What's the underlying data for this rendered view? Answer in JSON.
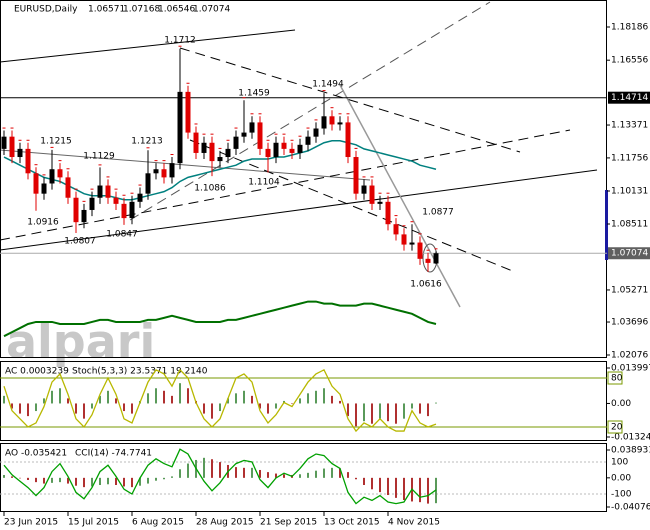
{
  "chart_data": {
    "type": "candlestick",
    "title": "EURUSD,Daily",
    "header_values": [
      1.06571,
      1.07168,
      1.06546,
      1.07074
    ],
    "categories": [
      "23 Jun 2015",
      null,
      null,
      null,
      null,
      null,
      null,
      null,
      "15 Jul 2015",
      null,
      null,
      null,
      null,
      null,
      null,
      null,
      "6 Aug 2015",
      null,
      null,
      null,
      null,
      null,
      null,
      null,
      "28 Aug 2015",
      null,
      null,
      null,
      null,
      null,
      null,
      null,
      "21 Sep 2015",
      null,
      null,
      null,
      null,
      null,
      null,
      null,
      "13 Oct 2015",
      null,
      null,
      null,
      null,
      null,
      null,
      null,
      "4 Nov 2015",
      null,
      null,
      null,
      null,
      null,
      null
    ],
    "open": [
      1.122,
      1.128,
      1.118,
      1.122,
      1.11,
      1.1,
      1.105,
      1.112,
      1.108,
      1.098,
      1.086,
      1.092,
      1.098,
      1.104,
      1.098,
      1.095,
      1.088,
      1.096,
      1.1,
      1.11,
      1.112,
      1.108,
      1.115,
      1.15,
      1.13,
      1.12,
      1.125,
      1.116,
      1.118,
      1.122,
      1.128,
      1.13,
      1.135,
      1.122,
      1.118,
      1.125,
      1.122,
      1.12,
      1.124,
      1.128,
      1.132,
      1.138,
      1.134,
      1.135,
      1.118,
      1.1,
      1.104,
      1.095,
      1.096,
      1.085,
      1.08,
      1.075,
      1.076,
      1.068,
      1.06571
    ],
    "high": [
      1.131,
      1.131,
      1.125,
      1.125,
      1.113,
      1.108,
      1.1215,
      1.115,
      1.111,
      1.101,
      1.095,
      1.101,
      1.1129,
      1.107,
      1.101,
      1.098,
      1.099,
      1.103,
      1.1213,
      1.115,
      1.115,
      1.118,
      1.1712,
      1.153,
      1.133,
      1.128,
      1.128,
      1.121,
      1.125,
      1.131,
      1.1459,
      1.138,
      1.138,
      1.125,
      1.128,
      1.128,
      1.125,
      1.127,
      1.131,
      1.135,
      1.1494,
      1.141,
      1.138,
      1.138,
      1.121,
      1.107,
      1.107,
      1.099,
      1.099,
      1.088,
      1.083,
      1.085,
      1.079,
      1.071,
      1.07168
    ],
    "low": [
      1.119,
      1.115,
      1.115,
      1.107,
      1.0916,
      1.097,
      1.102,
      1.105,
      1.095,
      1.0807,
      1.083,
      1.089,
      1.095,
      1.095,
      1.092,
      1.0847,
      1.085,
      1.093,
      1.097,
      1.107,
      1.105,
      1.105,
      1.112,
      1.127,
      1.117,
      1.117,
      1.1086,
      1.113,
      1.115,
      1.119,
      1.125,
      1.127,
      1.119,
      1.1104,
      1.115,
      1.119,
      1.117,
      1.117,
      1.121,
      1.125,
      1.129,
      1.131,
      1.131,
      1.115,
      1.097,
      1.097,
      1.092,
      1.092,
      1.082,
      1.077,
      1.072,
      1.072,
      1.065,
      1.0616,
      1.06546
    ],
    "close": [
      1.128,
      1.118,
      1.122,
      1.11,
      1.1,
      1.105,
      1.112,
      1.108,
      1.098,
      1.086,
      1.092,
      1.098,
      1.104,
      1.098,
      1.095,
      1.088,
      1.096,
      1.1,
      1.11,
      1.112,
      1.108,
      1.115,
      1.15,
      1.13,
      1.12,
      1.125,
      1.116,
      1.118,
      1.122,
      1.128,
      1.13,
      1.135,
      1.122,
      1.118,
      1.125,
      1.122,
      1.12,
      1.124,
      1.128,
      1.132,
      1.138,
      1.134,
      1.135,
      1.118,
      1.1,
      1.104,
      1.095,
      1.096,
      1.085,
      1.08,
      1.075,
      1.076,
      1.068,
      1.066,
      1.07074
    ],
    "up_color": "#000000",
    "down_color": "#e00000",
    "ylim": [
      1.01929,
      1.19512
    ],
    "yticks": [
      1.18186,
      1.16556,
      1.13371,
      1.11756,
      1.10131,
      1.08511,
      1.05271,
      1.03696,
      1.02076
    ],
    "lines": [
      {
        "color": "#00807f",
        "values": [
          1.118,
          1.116,
          1.114,
          1.112,
          1.11,
          1.108,
          1.107,
          1.106,
          1.104,
          1.102,
          1.1,
          1.099,
          1.099,
          1.099,
          1.098,
          1.097,
          1.097,
          1.098,
          1.099,
          1.1,
          1.101,
          1.103,
          1.106,
          1.108,
          1.109,
          1.11,
          1.111,
          1.112,
          1.113,
          1.114,
          1.116,
          1.117,
          1.117,
          1.117,
          1.118,
          1.118,
          1.119,
          1.12,
          1.121,
          1.123,
          1.125,
          1.126,
          1.126,
          1.125,
          1.124,
          1.122,
          1.121,
          1.12,
          1.119,
          1.118,
          1.117,
          1.116,
          1.114,
          1.113,
          1.112
        ]
      },
      {
        "color": "#007000",
        "values": [
          1.03,
          1.032,
          1.034,
          1.036,
          1.037,
          1.037,
          1.037,
          1.036,
          1.036,
          1.036,
          1.036,
          1.037,
          1.038,
          1.038,
          1.037,
          1.037,
          1.037,
          1.037,
          1.038,
          1.038,
          1.039,
          1.04,
          1.039,
          1.038,
          1.037,
          1.037,
          1.037,
          1.037,
          1.038,
          1.038,
          1.039,
          1.04,
          1.041,
          1.042,
          1.043,
          1.044,
          1.045,
          1.046,
          1.047,
          1.047,
          1.046,
          1.046,
          1.045,
          1.045,
          1.045,
          1.046,
          1.046,
          1.045,
          1.044,
          1.043,
          1.042,
          1.041,
          1.039,
          1.037,
          1.036
        ]
      }
    ],
    "price_line": 1.14714,
    "last_price": 1.07074,
    "annotations": [
      "1.1712",
      "1.1494",
      "1.1459",
      "1.1215",
      "1.1213",
      "1.1129",
      "1.1086",
      "1.1104",
      "1.0916",
      "1.0847",
      "1.0807",
      "1.0877",
      "1.0616"
    ],
    "watermark": "alpari",
    "indicators": [
      {
        "title": "AC 0.0003239",
        "title2": "Stoch(5,3,3) 23.5371 19.2140",
        "ylim": [
          -0.014823,
          0.016366
        ],
        "yticks": [
          0.013997,
          {
            "value": 0,
            "label": "0.00"
          },
          -0.013244
        ],
        "bars": [
          0.003,
          -0.002,
          -0.004,
          -0.005,
          -0.003,
          0.002,
          0.005,
          0.006,
          0.002,
          -0.004,
          -0.006,
          -0.002,
          0.003,
          0.005,
          0.002,
          -0.003,
          -0.004,
          0.001,
          0.004,
          0.006,
          0.005,
          0.003,
          0.008,
          0.006,
          0.001,
          -0.004,
          -0.006,
          -0.003,
          0.002,
          0.004,
          0.005,
          0.003,
          -0.002,
          -0.004,
          -0.002,
          0.001,
          0,
          0.002,
          0.004,
          0.005,
          0.006,
          0.003,
          0.001,
          -0.005,
          -0.009,
          -0.007,
          -0.008,
          -0.006,
          -0.007,
          -0.008,
          -0.006,
          -0.002,
          -0.004,
          -0.005,
          0.0003239
        ],
        "y2lim": [
          2.86,
          99.6
        ],
        "y2ticks": [
          80,
          20
        ],
        "line": {
          "color": "#b8b800",
          "values": [
            70,
            40,
            30,
            20,
            25,
            45,
            75,
            85,
            60,
            30,
            20,
            35,
            60,
            80,
            60,
            30,
            25,
            50,
            75,
            90,
            85,
            70,
            90,
            80,
            50,
            30,
            20,
            30,
            55,
            80,
            85,
            75,
            40,
            25,
            35,
            50,
            45,
            60,
            75,
            85,
            90,
            70,
            60,
            30,
            15,
            25,
            20,
            30,
            20,
            15,
            15,
            40,
            25,
            20,
            23.5371
          ]
        }
      },
      {
        "title": "AO -0.035421",
        "title2": "CCI(14) -74.7741",
        "ylim": [
          -0.04776,
          0.04732
        ],
        "yticks": [
          0.038931,
          {
            "value": 0,
            "label": "0.00"
          },
          -0.040765
        ],
        "bars": [
          0.004,
          0.002,
          0,
          -0.003,
          -0.006,
          -0.008,
          -0.007,
          -0.006,
          -0.008,
          -0.011,
          -0.013,
          -0.012,
          -0.01,
          -0.009,
          -0.01,
          -0.012,
          -0.013,
          -0.011,
          -0.008,
          -0.004,
          -0.002,
          0.002,
          0.012,
          0.02,
          0.025,
          0.028,
          0.026,
          0.022,
          0.018,
          0.015,
          0.014,
          0.014,
          0.011,
          0.008,
          0.006,
          0.005,
          0.004,
          0.005,
          0.007,
          0.01,
          0.013,
          0.014,
          0.013,
          0.008,
          -0.002,
          -0.01,
          -0.016,
          -0.02,
          -0.024,
          -0.028,
          -0.031,
          -0.033,
          -0.034,
          -0.036,
          -0.035421
        ],
        "y2lim": [
          -212.5,
          212.5
        ],
        "y2ticks": [
          100,
          -100
        ],
        "line": {
          "color": "#00a000",
          "values": [
            80,
            20,
            -20,
            -60,
            -110,
            -60,
            40,
            90,
            10,
            -90,
            -130,
            -60,
            40,
            80,
            10,
            -70,
            -100,
            0,
            80,
            120,
            90,
            70,
            180,
            150,
            60,
            -20,
            -80,
            -30,
            40,
            90,
            110,
            100,
            -10,
            -60,
            0,
            30,
            10,
            60,
            120,
            150,
            140,
            90,
            60,
            -90,
            -160,
            -120,
            -140,
            -110,
            -150,
            -160,
            -150,
            -70,
            -120,
            -110,
            -74.7741
          ]
        }
      }
    ]
  }
}
